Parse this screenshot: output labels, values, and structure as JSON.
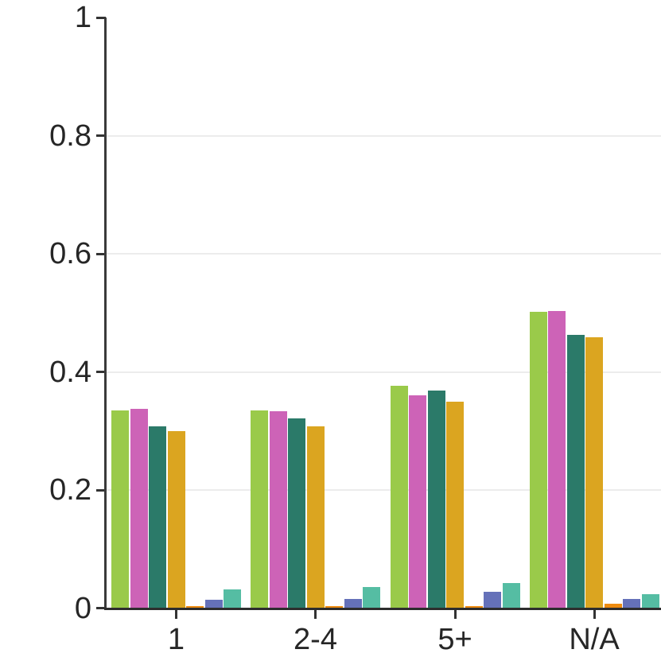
{
  "chart_data": {
    "type": "bar",
    "title": "",
    "xlabel": "",
    "ylabel": "",
    "categories": [
      "1",
      "2-4",
      "5+",
      "N/A"
    ],
    "series": [
      {
        "name": "lime-green",
        "color": "#9aca4a",
        "values": [
          0.335,
          0.335,
          0.377,
          0.502
        ]
      },
      {
        "name": "magenta",
        "color": "#cd63b7",
        "values": [
          0.337,
          0.334,
          0.36,
          0.503
        ]
      },
      {
        "name": "dark-teal",
        "color": "#2b7a69",
        "values": [
          0.308,
          0.321,
          0.369,
          0.462
        ]
      },
      {
        "name": "gold",
        "color": "#dba520",
        "values": [
          0.3,
          0.308,
          0.35,
          0.459
        ]
      },
      {
        "name": "orange",
        "color": "#ee8b0f",
        "values": [
          0.003,
          0.003,
          0.004,
          0.008
        ]
      },
      {
        "name": "slate-blue",
        "color": "#6571b9",
        "values": [
          0.014,
          0.015,
          0.027,
          0.015
        ]
      },
      {
        "name": "seafoam",
        "color": "#55bda3",
        "values": [
          0.031,
          0.036,
          0.043,
          0.024
        ]
      }
    ],
    "y_ticks": [
      {
        "label": "0",
        "value": 0.0
      },
      {
        "label": "0.2",
        "value": 0.2
      },
      {
        "label": "0.4",
        "value": 0.4
      },
      {
        "label": "0.6",
        "value": 0.6
      },
      {
        "label": "0.8",
        "value": 0.8
      },
      {
        "label": "1",
        "value": 1.0
      }
    ],
    "ylim": [
      0,
      1
    ],
    "grid": "horizontal-only",
    "legend": "none",
    "colors": {
      "background": "#ffffff",
      "axis": "#333333",
      "gridline": "#ececec",
      "tick_text": "#262626"
    }
  }
}
